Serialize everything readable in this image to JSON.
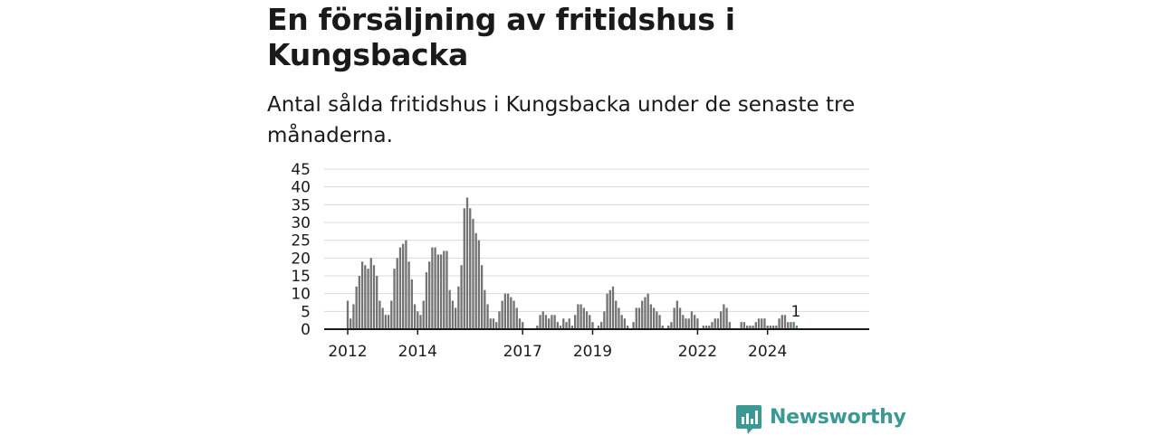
{
  "title": "En försäljning av fritidshus i Kungsbacka",
  "subtitle": "Antal sålda fritidshus i Kungsbacka under de senaste tre månaderna.",
  "brand": {
    "name": "Newsworthy",
    "color": "#3a9a93",
    "icon": "newsworthy-chart-icon"
  },
  "chart_data": {
    "type": "bar",
    "title": "",
    "xlabel": "",
    "ylabel": "",
    "ylim": [
      0,
      45
    ],
    "yticks": [
      0,
      5,
      10,
      15,
      20,
      25,
      30,
      35,
      40,
      45
    ],
    "grid": true,
    "legend": "none",
    "bar_color": "#737373",
    "highlight_color": "#3a9a93",
    "x_axis_labels": [
      "2012",
      "2014",
      "2017",
      "2019",
      "2022",
      "2024"
    ],
    "highlight": {
      "label": "1",
      "value": 1
    },
    "values": [
      8,
      3,
      7,
      12,
      15,
      19,
      18,
      17,
      20,
      18,
      15,
      8,
      6,
      4,
      4,
      8,
      17,
      20,
      23,
      24,
      25,
      19,
      14,
      7,
      5,
      4,
      8,
      16,
      19,
      23,
      23,
      21,
      21,
      22,
      22,
      11,
      8,
      6,
      12,
      18,
      34,
      37,
      34,
      31,
      27,
      25,
      18,
      11,
      7,
      3,
      3,
      2,
      5,
      8,
      10,
      10,
      9,
      8,
      6,
      3,
      2,
      0,
      0,
      0,
      0,
      1,
      4,
      5,
      4,
      3,
      4,
      4,
      2,
      1,
      3,
      2,
      3,
      1,
      4,
      7,
      7,
      6,
      5,
      4,
      2,
      0,
      1,
      2,
      5,
      10,
      11,
      12,
      8,
      6,
      4,
      3,
      1,
      0,
      2,
      6,
      6,
      8,
      9,
      10,
      7,
      6,
      5,
      4,
      1,
      0,
      1,
      2,
      6,
      8,
      6,
      4,
      3,
      3,
      5,
      4,
      3,
      0,
      1,
      1,
      1,
      2,
      3,
      3,
      5,
      7,
      6,
      2,
      0,
      0,
      0,
      2,
      2,
      1,
      1,
      1,
      2,
      3,
      3,
      3,
      1,
      1,
      1,
      1,
      3,
      4,
      4,
      2,
      2,
      2,
      1
    ]
  }
}
